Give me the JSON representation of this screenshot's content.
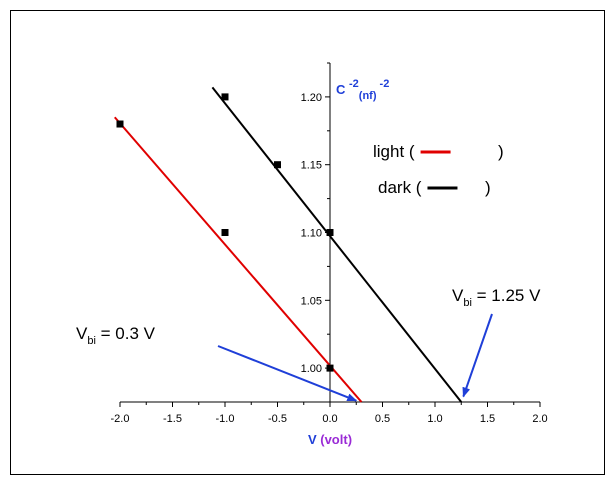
{
  "chart_data": {
    "type": "scatter",
    "title": "",
    "xlabel": {
      "main": "V",
      "unit": "(volt)"
    },
    "ylabel": {
      "base": "C",
      "base_sup": "-2",
      "unit_sub": "(nf)",
      "unit_sup": "-2"
    },
    "xlim": [
      -2.0,
      2.0
    ],
    "ylim": [
      0.975,
      1.225
    ],
    "x_ticks": [
      -2.0,
      -1.5,
      -1.0,
      -0.5,
      0.0,
      0.5,
      1.0,
      1.5,
      2.0
    ],
    "x_tick_labels": [
      "-2.0",
      "-1.5",
      "-1.0",
      "-0.5",
      "0.0",
      "0.5",
      "1.0",
      "1.5",
      "2.0"
    ],
    "y_ticks": [
      1.0,
      1.05,
      1.1,
      1.15,
      1.2
    ],
    "y_tick_labels": [
      "1.00",
      "1.05",
      "1.10",
      "1.15",
      "1.20"
    ],
    "grid": false,
    "legend_position": "top-right",
    "series": [
      {
        "name": "light",
        "color": "#e00000",
        "points": [
          {
            "x": -2.0,
            "y": 1.18
          },
          {
            "x": -1.0,
            "y": 1.1
          },
          {
            "x": 0.0,
            "y": 1.0
          }
        ],
        "fit": [
          {
            "x": -2.05,
            "y": 1.185
          },
          {
            "x": 0.3,
            "y": 0.975
          }
        ]
      },
      {
        "name": "dark",
        "color": "#000000",
        "points": [
          {
            "x": -1.0,
            "y": 1.2
          },
          {
            "x": -0.5,
            "y": 1.15
          },
          {
            "x": 0.0,
            "y": 1.1
          }
        ],
        "fit": [
          {
            "x": -1.12,
            "y": 1.207
          },
          {
            "x": 1.25,
            "y": 0.975
          }
        ]
      }
    ],
    "legend": [
      {
        "text_open": "light (",
        "text_close": ")",
        "color": "#e00000"
      },
      {
        "text_open": "dark (",
        "text_close": ")",
        "color": "#000000"
      }
    ],
    "annotations": [
      {
        "main": "V",
        "sub": "bi",
        "rest": " = 0.3 V",
        "arrow_color": "#1f3fd8",
        "arrow_to": {
          "x": 0.25,
          "y": 0.976
        }
      },
      {
        "main": "V",
        "sub": "bi",
        "rest": " = 1.25 V",
        "arrow_color": "#1f3fd8",
        "arrow_to": {
          "x": 1.27,
          "y": 0.979
        }
      }
    ],
    "colors": {
      "axis_title_primary": "#1f3fd8",
      "axis_title_secondary": "#9a2bd6"
    }
  }
}
